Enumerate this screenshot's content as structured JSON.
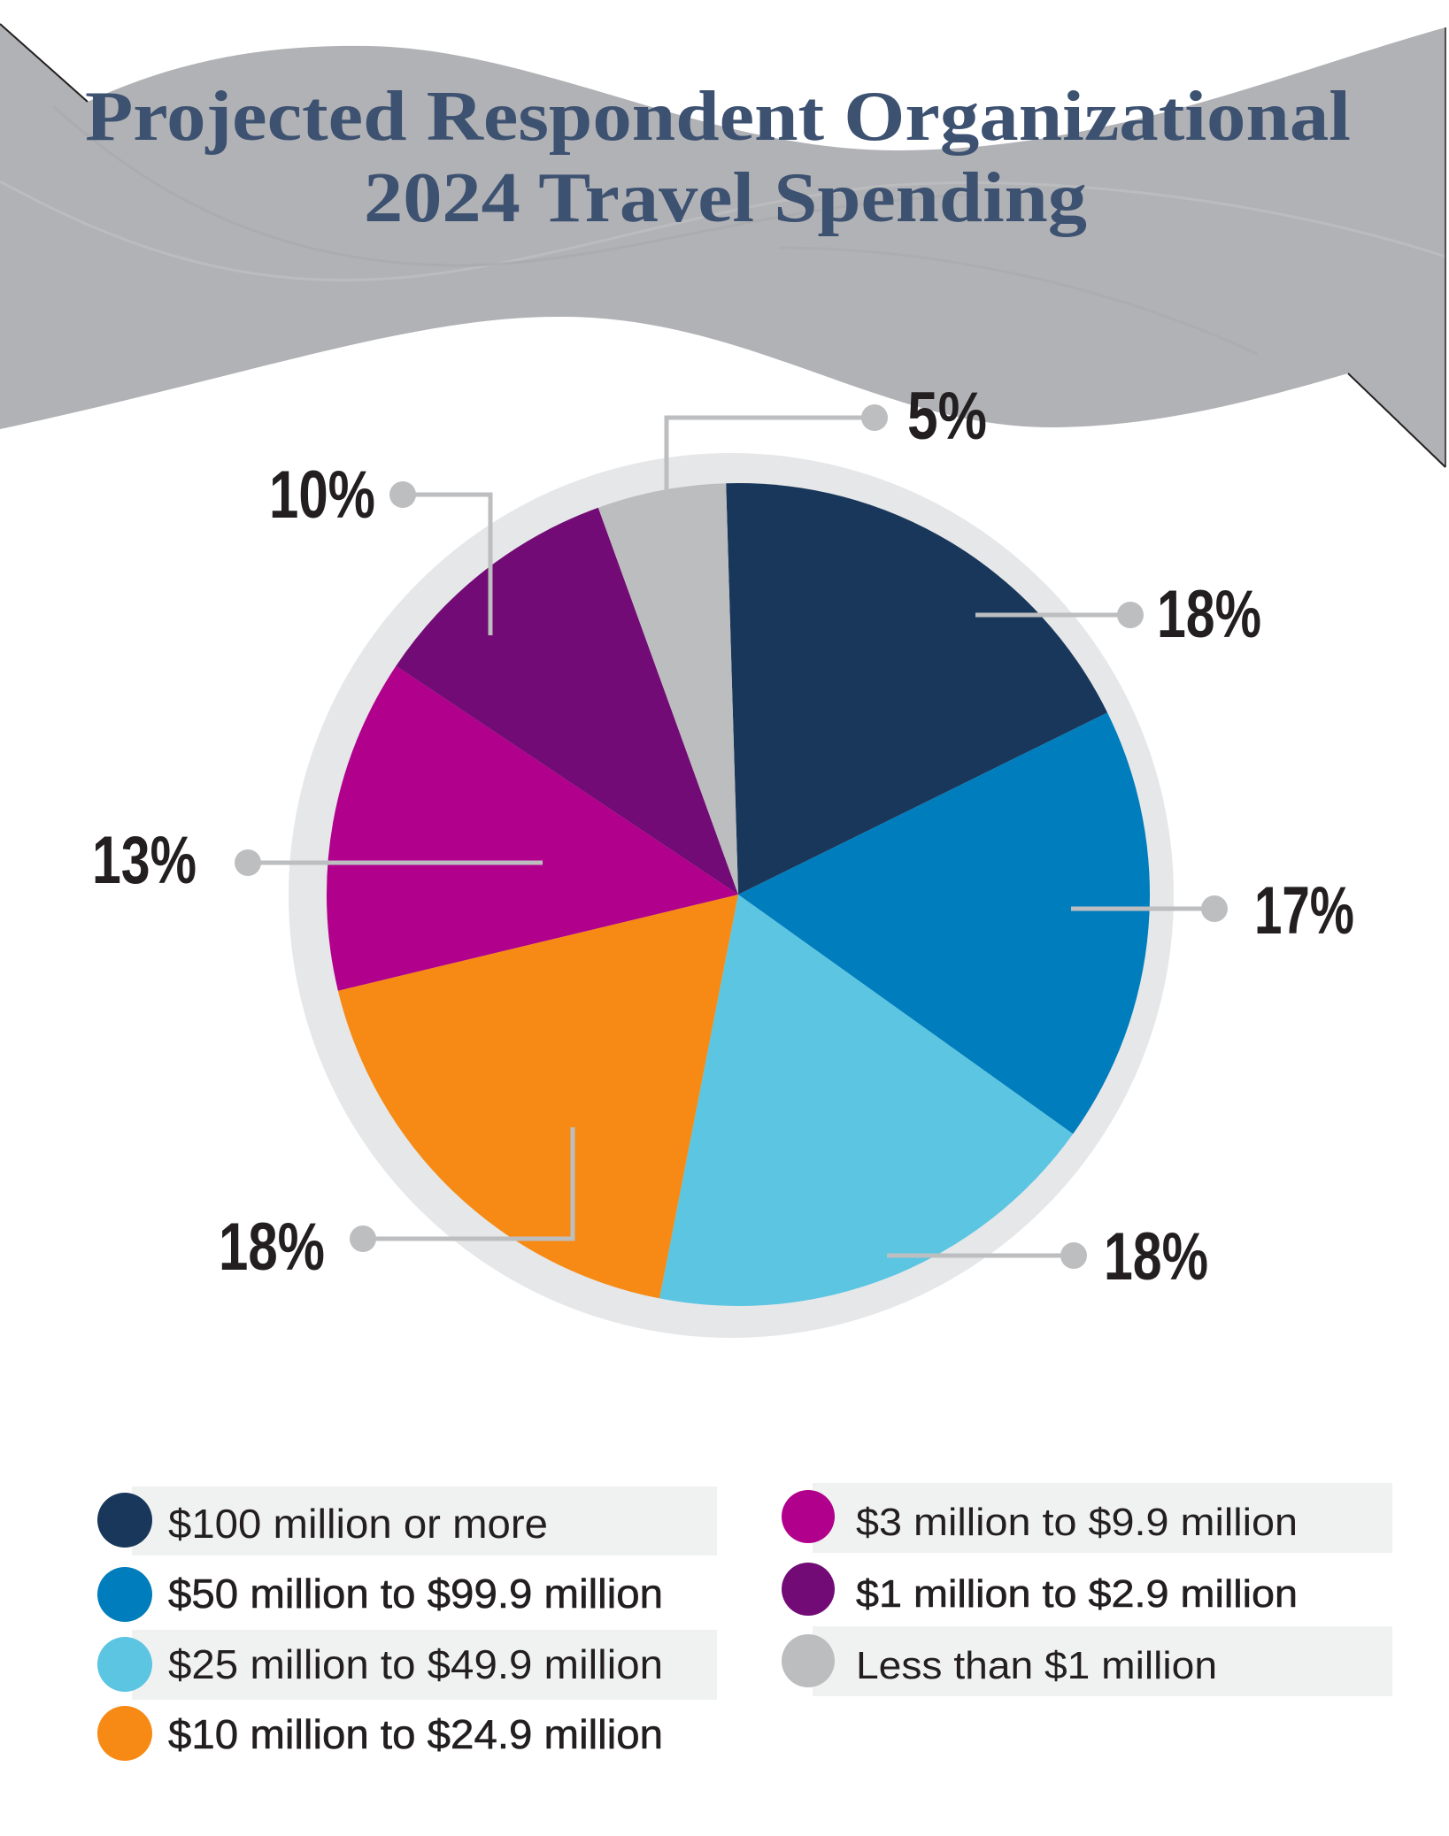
{
  "title": {
    "line1": "Projected Respondent Organizational",
    "line2": "2024 Travel Spending"
  },
  "chart_data": {
    "type": "pie",
    "title": "Projected Respondent Organizational 2024 Travel Spending",
    "categories": [
      "$100 million or more",
      "$50 million to $99.9 million",
      "$25 million to $49.9 million",
      "$10 million to $24.9 million",
      "$3 million to $9.9 million",
      "$1 million to $2.9 million",
      "Less than $1 million"
    ],
    "values": [
      18,
      17,
      18,
      18,
      13,
      10,
      5
    ],
    "labels": [
      "18%",
      "17%",
      "18%",
      "18%",
      "13%",
      "10%",
      "5%"
    ],
    "unit": "%",
    "colors": [
      "#18375a",
      "#007dbd",
      "#5bc5e2",
      "#f68a14",
      "#b0008c",
      "#720b75",
      "#bcbdbf"
    ],
    "legend_position": "bottom",
    "ring_color": "#e6e7e9"
  },
  "legend": {
    "items": [
      {
        "label": "$100 million or more",
        "color": "#18375a"
      },
      {
        "label": "$50 million to $99.9 million",
        "color": "#007dbd"
      },
      {
        "label": "$25 million to $49.9 million",
        "color": "#5bc5e2"
      },
      {
        "label": "$10 million to $24.9 million",
        "color": "#f68a14"
      },
      {
        "label": "$3 million to $9.9 million",
        "color": "#b0008c"
      },
      {
        "label": "$1 million to $2.9 million",
        "color": "#720b75"
      },
      {
        "label": "Less than $1 million",
        "color": "#bcbdbf"
      }
    ]
  }
}
